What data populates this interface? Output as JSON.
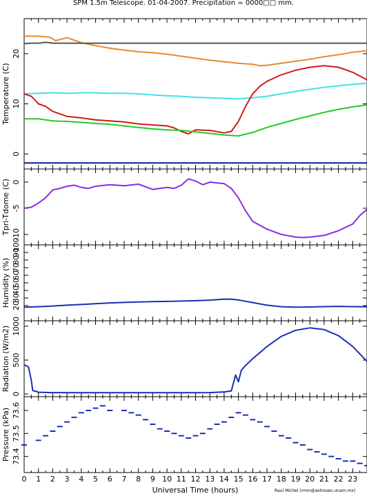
{
  "title": "SPM 1.5m Telescope. 01-04-2007. Precipitation = 0000□□ mm.",
  "xlabel": "Universal Time (hours)",
  "credit": "Raul Michel (rmm@astrosen.unam.mx)",
  "x_ticks": [
    "0",
    "1",
    "2",
    "3",
    "4",
    "5",
    "6",
    "7",
    "8",
    "9",
    "10",
    "11",
    "12",
    "13",
    "14",
    "15",
    "16",
    "17",
    "18",
    "19",
    "20",
    "21",
    "22",
    "23"
  ],
  "chart_data": [
    {
      "type": "line",
      "ylabel": "Temperature (C)",
      "ylim": [
        -3,
        27
      ],
      "yticks": [
        "0",
        "10",
        "20"
      ],
      "series": [
        {
          "color": "#e8892a",
          "x": [
            0,
            1,
            1.8,
            2.2,
            3,
            3.6,
            4,
            5,
            6,
            7,
            8,
            9,
            10,
            11,
            12,
            13,
            14,
            15,
            16,
            16.5,
            17,
            18,
            19,
            20,
            21,
            22,
            23,
            24
          ],
          "y": [
            23.5,
            23.5,
            23.3,
            22.6,
            23.2,
            22.6,
            22.2,
            21.6,
            21.1,
            20.7,
            20.4,
            20.2,
            19.9,
            19.5,
            19.1,
            18.7,
            18.4,
            18.1,
            17.9,
            17.6,
            17.7,
            18.1,
            18.5,
            18.9,
            19.4,
            19.8,
            20.3,
            20.6
          ]
        },
        {
          "color": "#555555",
          "x": [
            0,
            0.5,
            1,
            1.5,
            2,
            24
          ],
          "y": [
            22.0,
            22.1,
            22.1,
            22.3,
            22.1,
            22.1
          ]
        },
        {
          "color": "#40e0e8",
          "x": [
            0,
            1,
            2,
            3,
            4,
            5,
            6,
            7,
            8,
            9,
            10,
            11,
            12,
            13,
            14,
            15,
            16,
            17,
            18,
            19,
            20,
            21,
            22,
            23,
            24
          ],
          "y": [
            12,
            12.1,
            12.2,
            12.1,
            12.2,
            12.2,
            12.1,
            12.1,
            12,
            11.8,
            11.6,
            11.5,
            11.3,
            11.2,
            11.1,
            11,
            11.2,
            11.5,
            12,
            12.5,
            12.9,
            13.3,
            13.6,
            13.9,
            14.1
          ]
        },
        {
          "color": "#d01a1a",
          "x": [
            0,
            0.5,
            1,
            1.5,
            2,
            3,
            4,
            5,
            6,
            7,
            8,
            9,
            10,
            10.5,
            11,
            11.5,
            12,
            13,
            14,
            14.5,
            15,
            15.5,
            16,
            16.5,
            17,
            18,
            19,
            20,
            21,
            22,
            23,
            24
          ],
          "y": [
            12,
            11.5,
            10,
            9.5,
            8.5,
            7.5,
            7.2,
            6.8,
            6.6,
            6.4,
            6,
            5.8,
            5.6,
            5.2,
            4.5,
            4,
            4.8,
            4.7,
            4.2,
            4.5,
            6.5,
            9.5,
            12,
            13.5,
            14.5,
            15.8,
            16.7,
            17.3,
            17.6,
            17.3,
            16.3,
            14.8
          ]
        },
        {
          "color": "#22cc22",
          "x": [
            0,
            1,
            2,
            3,
            4,
            5,
            6,
            7,
            8,
            9,
            10,
            11,
            12,
            13,
            14,
            15,
            16,
            17,
            18,
            19,
            20,
            21,
            22,
            23,
            24
          ],
          "y": [
            7,
            7,
            6.6,
            6.5,
            6.3,
            6.1,
            5.9,
            5.6,
            5.3,
            5,
            4.8,
            4.7,
            4.4,
            4.1,
            3.8,
            3.6,
            4.3,
            5.3,
            6.1,
            6.9,
            7.6,
            8.3,
            8.9,
            9.4,
            9.8
          ]
        },
        {
          "color": "#0a1a9a",
          "x": [
            0,
            24
          ],
          "y": [
            -1.8,
            -1.8
          ]
        }
      ]
    },
    {
      "type": "line",
      "ylabel": "Tpri-Tdome (C)",
      "ylim": [
        -12,
        2.5
      ],
      "yticks": [
        "0",
        "-5",
        "-10"
      ],
      "series": [
        {
          "color": "#8a2be2",
          "x": [
            0,
            0.5,
            1,
            1.5,
            2,
            2.5,
            3,
            3.5,
            4,
            4.5,
            5,
            6,
            7,
            8,
            9,
            10,
            10.5,
            11,
            11.5,
            12,
            12.5,
            13,
            14,
            14.5,
            15,
            15.5,
            16,
            17,
            18,
            19,
            19.5,
            20,
            21,
            22,
            23,
            23.5,
            24
          ],
          "y": [
            -5,
            -4.8,
            -4,
            -3,
            -1.5,
            -1.2,
            -0.8,
            -0.6,
            -1,
            -1.2,
            -0.8,
            -0.5,
            -0.7,
            -0.4,
            -1.4,
            -1,
            -1.2,
            -0.6,
            0.6,
            0.2,
            -0.5,
            0,
            -0.3,
            -1.2,
            -3,
            -5.5,
            -7.5,
            -9,
            -10,
            -10.5,
            -10.6,
            -10.5,
            -10.2,
            -9.3,
            -8,
            -6.4,
            -5.2
          ]
        }
      ]
    },
    {
      "type": "line",
      "ylabel": "Humidity (%)",
      "ylim": [
        0,
        100
      ],
      "yticks": [
        "20",
        "30",
        "40",
        "50",
        "60",
        "70",
        "80",
        "90",
        "100"
      ],
      "series": [
        {
          "color": "#1a2eb5",
          "x": [
            0,
            1,
            2,
            3,
            4,
            5,
            6,
            7,
            8,
            9,
            10,
            11,
            12,
            13,
            14,
            14.5,
            15,
            16,
            17,
            18,
            19,
            20,
            21,
            22,
            23,
            24
          ],
          "y": [
            18,
            18.5,
            19.5,
            20.5,
            21.5,
            22.5,
            23.5,
            24.2,
            24.8,
            25.2,
            25.5,
            26,
            26.5,
            27.2,
            28.5,
            28.4,
            27.5,
            24,
            20.5,
            18.5,
            18,
            18.2,
            18.6,
            19,
            18.6,
            18.4
          ]
        }
      ]
    },
    {
      "type": "line",
      "ylabel": "Radiation (W/m2)",
      "ylim": [
        -40,
        1080
      ],
      "yticks": [
        "0",
        "500",
        "1000"
      ],
      "series": [
        {
          "color": "#1a2eb5",
          "x": [
            0,
            0.3,
            0.5,
            0.6,
            0.8,
            1,
            2,
            4,
            6,
            8,
            10,
            12,
            13,
            14,
            14.5,
            14.8,
            15,
            15.2,
            15.5,
            16,
            17,
            18,
            19,
            20,
            21,
            22,
            23,
            24
          ],
          "y": [
            430,
            400,
            200,
            50,
            40,
            25,
            20,
            18,
            18,
            18,
            18,
            18,
            20,
            30,
            45,
            280,
            180,
            350,
            420,
            520,
            700,
            850,
            940,
            975,
            950,
            860,
            700,
            480
          ]
        }
      ]
    },
    {
      "type": "scatter",
      "ylabel": "Pressure (kPa)",
      "ylim": [
        73.33,
        73.66
      ],
      "yticks": [
        "73.4",
        "73.5",
        "73.6"
      ],
      "series": [
        {
          "color": "#1a2eb5",
          "x": [
            0,
            1,
            1.5,
            2,
            2.5,
            3,
            3.5,
            4,
            4.5,
            5,
            5.5,
            6,
            7,
            7.5,
            8,
            8.5,
            9,
            9.5,
            10,
            10.5,
            11,
            11.5,
            12,
            12.5,
            13,
            13.5,
            14,
            14.5,
            15,
            15.5,
            16,
            16.5,
            17,
            17.5,
            18,
            18.5,
            19,
            19.5,
            20,
            20.5,
            21,
            21.5,
            22,
            22.5,
            23,
            23.5,
            24
          ],
          "y": [
            73.45,
            73.47,
            73.49,
            73.51,
            73.53,
            73.55,
            73.57,
            73.59,
            73.6,
            73.61,
            73.62,
            73.6,
            73.6,
            73.59,
            73.58,
            73.56,
            73.54,
            73.52,
            73.51,
            73.5,
            73.49,
            73.48,
            73.49,
            73.5,
            73.52,
            73.54,
            73.55,
            73.57,
            73.59,
            73.58,
            73.56,
            73.55,
            73.53,
            73.51,
            73.49,
            73.48,
            73.46,
            73.45,
            73.43,
            73.42,
            73.41,
            73.4,
            73.39,
            73.38,
            73.38,
            73.37,
            73.36
          ]
        }
      ]
    }
  ]
}
